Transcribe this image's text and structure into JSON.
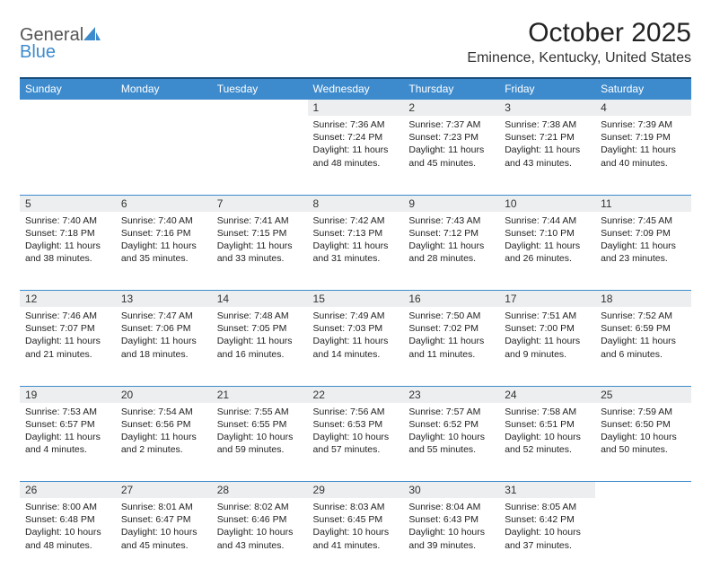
{
  "logo": {
    "word1": "General",
    "word2": "Blue"
  },
  "title": "October 2025",
  "location": "Eminence, Kentucky, United States",
  "colors": {
    "header_bg": "#3d8bcd",
    "header_border_top": "#1a4e7a",
    "cell_border": "#3d8bcd",
    "daynum_bg": "#eceeef",
    "text": "#222222",
    "logo_gray": "#555555",
    "logo_blue": "#3d8bcd"
  },
  "day_headers": [
    "Sunday",
    "Monday",
    "Tuesday",
    "Wednesday",
    "Thursday",
    "Friday",
    "Saturday"
  ],
  "weeks": [
    [
      null,
      null,
      null,
      {
        "n": "1",
        "sr": "7:36 AM",
        "ss": "7:24 PM",
        "dl": "11 hours and 48 minutes."
      },
      {
        "n": "2",
        "sr": "7:37 AM",
        "ss": "7:23 PM",
        "dl": "11 hours and 45 minutes."
      },
      {
        "n": "3",
        "sr": "7:38 AM",
        "ss": "7:21 PM",
        "dl": "11 hours and 43 minutes."
      },
      {
        "n": "4",
        "sr": "7:39 AM",
        "ss": "7:19 PM",
        "dl": "11 hours and 40 minutes."
      }
    ],
    [
      {
        "n": "5",
        "sr": "7:40 AM",
        "ss": "7:18 PM",
        "dl": "11 hours and 38 minutes."
      },
      {
        "n": "6",
        "sr": "7:40 AM",
        "ss": "7:16 PM",
        "dl": "11 hours and 35 minutes."
      },
      {
        "n": "7",
        "sr": "7:41 AM",
        "ss": "7:15 PM",
        "dl": "11 hours and 33 minutes."
      },
      {
        "n": "8",
        "sr": "7:42 AM",
        "ss": "7:13 PM",
        "dl": "11 hours and 31 minutes."
      },
      {
        "n": "9",
        "sr": "7:43 AM",
        "ss": "7:12 PM",
        "dl": "11 hours and 28 minutes."
      },
      {
        "n": "10",
        "sr": "7:44 AM",
        "ss": "7:10 PM",
        "dl": "11 hours and 26 minutes."
      },
      {
        "n": "11",
        "sr": "7:45 AM",
        "ss": "7:09 PM",
        "dl": "11 hours and 23 minutes."
      }
    ],
    [
      {
        "n": "12",
        "sr": "7:46 AM",
        "ss": "7:07 PM",
        "dl": "11 hours and 21 minutes."
      },
      {
        "n": "13",
        "sr": "7:47 AM",
        "ss": "7:06 PM",
        "dl": "11 hours and 18 minutes."
      },
      {
        "n": "14",
        "sr": "7:48 AM",
        "ss": "7:05 PM",
        "dl": "11 hours and 16 minutes."
      },
      {
        "n": "15",
        "sr": "7:49 AM",
        "ss": "7:03 PM",
        "dl": "11 hours and 14 minutes."
      },
      {
        "n": "16",
        "sr": "7:50 AM",
        "ss": "7:02 PM",
        "dl": "11 hours and 11 minutes."
      },
      {
        "n": "17",
        "sr": "7:51 AM",
        "ss": "7:00 PM",
        "dl": "11 hours and 9 minutes."
      },
      {
        "n": "18",
        "sr": "7:52 AM",
        "ss": "6:59 PM",
        "dl": "11 hours and 6 minutes."
      }
    ],
    [
      {
        "n": "19",
        "sr": "7:53 AM",
        "ss": "6:57 PM",
        "dl": "11 hours and 4 minutes."
      },
      {
        "n": "20",
        "sr": "7:54 AM",
        "ss": "6:56 PM",
        "dl": "11 hours and 2 minutes."
      },
      {
        "n": "21",
        "sr": "7:55 AM",
        "ss": "6:55 PM",
        "dl": "10 hours and 59 minutes."
      },
      {
        "n": "22",
        "sr": "7:56 AM",
        "ss": "6:53 PM",
        "dl": "10 hours and 57 minutes."
      },
      {
        "n": "23",
        "sr": "7:57 AM",
        "ss": "6:52 PM",
        "dl": "10 hours and 55 minutes."
      },
      {
        "n": "24",
        "sr": "7:58 AM",
        "ss": "6:51 PM",
        "dl": "10 hours and 52 minutes."
      },
      {
        "n": "25",
        "sr": "7:59 AM",
        "ss": "6:50 PM",
        "dl": "10 hours and 50 minutes."
      }
    ],
    [
      {
        "n": "26",
        "sr": "8:00 AM",
        "ss": "6:48 PM",
        "dl": "10 hours and 48 minutes."
      },
      {
        "n": "27",
        "sr": "8:01 AM",
        "ss": "6:47 PM",
        "dl": "10 hours and 45 minutes."
      },
      {
        "n": "28",
        "sr": "8:02 AM",
        "ss": "6:46 PM",
        "dl": "10 hours and 43 minutes."
      },
      {
        "n": "29",
        "sr": "8:03 AM",
        "ss": "6:45 PM",
        "dl": "10 hours and 41 minutes."
      },
      {
        "n": "30",
        "sr": "8:04 AM",
        "ss": "6:43 PM",
        "dl": "10 hours and 39 minutes."
      },
      {
        "n": "31",
        "sr": "8:05 AM",
        "ss": "6:42 PM",
        "dl": "10 hours and 37 minutes."
      },
      null
    ]
  ],
  "labels": {
    "sunrise": "Sunrise:",
    "sunset": "Sunset:",
    "daylight": "Daylight:"
  }
}
